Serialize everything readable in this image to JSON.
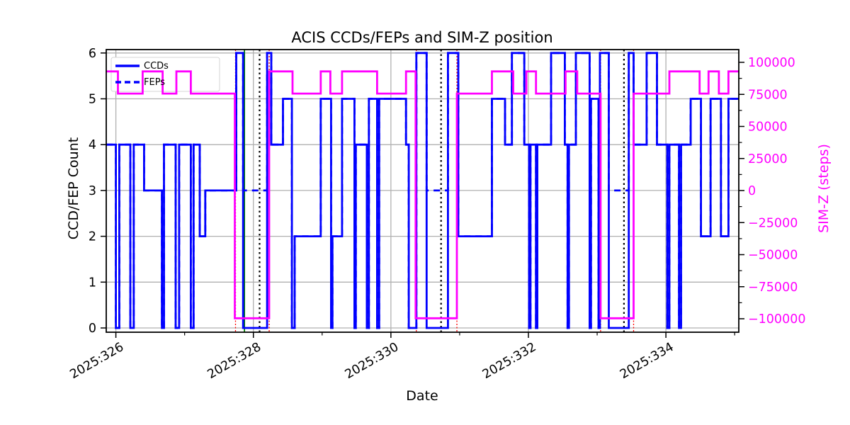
{
  "title": "ACIS CCDs/FEPs and SIM-Z position",
  "chart_data": {
    "type": "line",
    "title": "ACIS CCDs/FEPs and SIM-Z position",
    "xlabel": "Date",
    "ylabel_left": "CCD/FEP Count",
    "ylabel_right": "SIM-Z (steps)",
    "grid": true,
    "colors": {
      "ccds": "#0000ff",
      "feps": "#0000ff",
      "simz": "#ff00ff",
      "grid": "#b0b0b0",
      "spine": "#000000",
      "green_marker": "#008000",
      "red_marker": "#ff0000",
      "black_marker": "#000000"
    },
    "x_axis": {
      "range": [
        325.86,
        335.06
      ],
      "major_ticks": [
        326,
        328,
        330,
        332,
        334
      ],
      "major_tick_labels": [
        "2025:326",
        "2025:328",
        "2025:330",
        "2025:332",
        "2025:334"
      ],
      "minor_ticks": [
        327,
        329,
        331,
        333,
        335
      ]
    },
    "y_axis_left": {
      "range": [
        -0.09,
        6.09
      ],
      "ticks": [
        0,
        1,
        2,
        3,
        4,
        5,
        6
      ],
      "tick_labels": [
        "0",
        "1",
        "2",
        "3",
        "4",
        "5",
        "6"
      ]
    },
    "y_axis_right": {
      "range": [
        -107000,
        110000
      ],
      "ticks": [
        100000,
        75000,
        50000,
        25000,
        0,
        -25000,
        -50000,
        -75000,
        -100000
      ],
      "tick_labels": [
        "100000",
        "75000",
        "50000",
        "25000",
        "0",
        "−25000",
        "−50000",
        "−75000",
        "−100000"
      ],
      "minor_ticks": [
        87500,
        62500,
        37500,
        12500,
        -12500,
        -37500,
        -62500,
        -87500
      ],
      "color": "#ff00ff"
    },
    "legend": {
      "position": "upper-left",
      "entries": [
        {
          "label": "CCDs",
          "style": "solid",
          "color": "#0000ff"
        },
        {
          "label": "FEPs",
          "style": "dashed",
          "color": "#0000ff"
        }
      ]
    },
    "x_end": 335.06,
    "marker_lines": {
      "black_dotted": [
        328.09,
        330.73,
        333.39
      ],
      "green_solid": [
        327.87
      ],
      "red_dotted": [
        327.74,
        328.23,
        330.37,
        330.96,
        333.05,
        333.53
      ]
    },
    "series": [
      {
        "name": "CCDs",
        "axis": "left",
        "color": "#0000ff",
        "style": "solid",
        "step_points": [
          [
            325.86,
            4
          ],
          [
            326.0,
            0
          ],
          [
            326.05,
            4
          ],
          [
            326.21,
            0
          ],
          [
            326.26,
            4
          ],
          [
            326.41,
            3
          ],
          [
            326.67,
            0
          ],
          [
            326.7,
            4
          ],
          [
            326.87,
            0
          ],
          [
            326.92,
            4
          ],
          [
            327.09,
            0
          ],
          [
            327.13,
            4
          ],
          [
            327.22,
            2
          ],
          [
            327.3,
            3
          ],
          [
            327.75,
            6
          ],
          [
            327.85,
            0
          ],
          [
            328.2,
            6
          ],
          [
            328.26,
            4
          ],
          [
            328.43,
            5
          ],
          [
            328.56,
            0
          ],
          [
            328.6,
            2
          ],
          [
            328.98,
            5
          ],
          [
            329.13,
            0
          ],
          [
            329.15,
            2
          ],
          [
            329.29,
            5
          ],
          [
            329.47,
            0
          ],
          [
            329.49,
            4
          ],
          [
            329.65,
            0
          ],
          [
            329.68,
            5
          ],
          [
            329.8,
            0
          ],
          [
            329.83,
            5
          ],
          [
            330.22,
            4
          ],
          [
            330.26,
            0
          ],
          [
            330.37,
            6
          ],
          [
            330.52,
            0
          ],
          [
            330.83,
            6
          ],
          [
            330.98,
            2
          ],
          [
            331.47,
            5
          ],
          [
            331.66,
            4
          ],
          [
            331.76,
            6
          ],
          [
            331.94,
            4
          ],
          [
            332.01,
            0
          ],
          [
            332.03,
            4
          ],
          [
            332.11,
            0
          ],
          [
            332.13,
            4
          ],
          [
            332.33,
            6
          ],
          [
            332.53,
            4
          ],
          [
            332.57,
            0
          ],
          [
            332.59,
            4
          ],
          [
            332.69,
            6
          ],
          [
            332.89,
            0
          ],
          [
            332.91,
            5
          ],
          [
            333.02,
            0
          ],
          [
            333.04,
            6
          ],
          [
            333.17,
            0
          ],
          [
            333.46,
            6
          ],
          [
            333.53,
            4
          ],
          [
            333.72,
            6
          ],
          [
            333.87,
            4
          ],
          [
            334.02,
            0
          ],
          [
            334.05,
            4
          ],
          [
            334.19,
            0
          ],
          [
            334.22,
            4
          ],
          [
            334.36,
            5
          ],
          [
            334.51,
            2
          ],
          [
            334.65,
            5
          ],
          [
            334.8,
            2
          ],
          [
            334.91,
            5
          ]
        ]
      },
      {
        "name": "FEPs",
        "axis": "left",
        "color": "#0000ff",
        "style": "dashed",
        "step_points": [
          [
            325.86,
            4
          ],
          [
            326.0,
            0
          ],
          [
            326.05,
            4
          ],
          [
            326.21,
            0
          ],
          [
            326.26,
            4
          ],
          [
            326.41,
            3
          ],
          [
            326.67,
            0
          ],
          [
            326.7,
            4
          ],
          [
            326.87,
            0
          ],
          [
            326.92,
            4
          ],
          [
            327.09,
            0
          ],
          [
            327.13,
            4
          ],
          [
            327.22,
            2
          ],
          [
            327.3,
            3
          ],
          [
            327.75,
            6
          ],
          [
            327.85,
            3
          ],
          [
            328.2,
            6
          ],
          [
            328.26,
            4
          ],
          [
            328.43,
            5
          ],
          [
            328.56,
            0
          ],
          [
            328.6,
            2
          ],
          [
            328.98,
            5
          ],
          [
            329.13,
            0
          ],
          [
            329.15,
            2
          ],
          [
            329.29,
            5
          ],
          [
            329.47,
            0
          ],
          [
            329.49,
            4
          ],
          [
            329.65,
            0
          ],
          [
            329.68,
            5
          ],
          [
            329.8,
            0
          ],
          [
            329.83,
            5
          ],
          [
            330.22,
            4
          ],
          [
            330.26,
            0
          ],
          [
            330.37,
            6
          ],
          [
            330.52,
            3
          ],
          [
            330.83,
            6
          ],
          [
            330.98,
            2
          ],
          [
            331.47,
            5
          ],
          [
            331.66,
            4
          ],
          [
            331.76,
            6
          ],
          [
            331.94,
            4
          ],
          [
            332.01,
            0
          ],
          [
            332.03,
            4
          ],
          [
            332.11,
            0
          ],
          [
            332.13,
            4
          ],
          [
            332.33,
            6
          ],
          [
            332.53,
            4
          ],
          [
            332.57,
            0
          ],
          [
            332.59,
            4
          ],
          [
            332.69,
            6
          ],
          [
            332.89,
            0
          ],
          [
            332.91,
            5
          ],
          [
            333.02,
            0
          ],
          [
            333.04,
            6
          ],
          [
            333.17,
            3
          ],
          [
            333.46,
            6
          ],
          [
            333.53,
            4
          ],
          [
            333.72,
            6
          ],
          [
            333.87,
            4
          ],
          [
            334.02,
            0
          ],
          [
            334.05,
            4
          ],
          [
            334.19,
            0
          ],
          [
            334.22,
            4
          ],
          [
            334.36,
            5
          ],
          [
            334.51,
            2
          ],
          [
            334.65,
            5
          ],
          [
            334.8,
            2
          ],
          [
            334.91,
            5
          ]
        ]
      },
      {
        "name": "SIM-Z",
        "axis": "right",
        "color": "#ff00ff",
        "style": "solid",
        "step_points": [
          [
            325.86,
            92905
          ],
          [
            326.03,
            75620
          ],
          [
            326.39,
            92905
          ],
          [
            326.68,
            75620
          ],
          [
            326.88,
            92905
          ],
          [
            327.09,
            75620
          ],
          [
            327.73,
            -99612
          ],
          [
            328.23,
            92905
          ],
          [
            328.57,
            75620
          ],
          [
            328.98,
            92905
          ],
          [
            329.12,
            75620
          ],
          [
            329.29,
            92905
          ],
          [
            329.8,
            75620
          ],
          [
            330.22,
            92905
          ],
          [
            330.36,
            -99612
          ],
          [
            330.96,
            75620
          ],
          [
            331.47,
            92905
          ],
          [
            331.78,
            75620
          ],
          [
            331.97,
            92905
          ],
          [
            332.11,
            75620
          ],
          [
            332.54,
            92905
          ],
          [
            332.71,
            75620
          ],
          [
            333.05,
            -99612
          ],
          [
            333.53,
            75620
          ],
          [
            334.05,
            92905
          ],
          [
            334.49,
            75620
          ],
          [
            334.62,
            92905
          ],
          [
            334.77,
            75620
          ],
          [
            334.91,
            92905
          ]
        ]
      }
    ]
  }
}
